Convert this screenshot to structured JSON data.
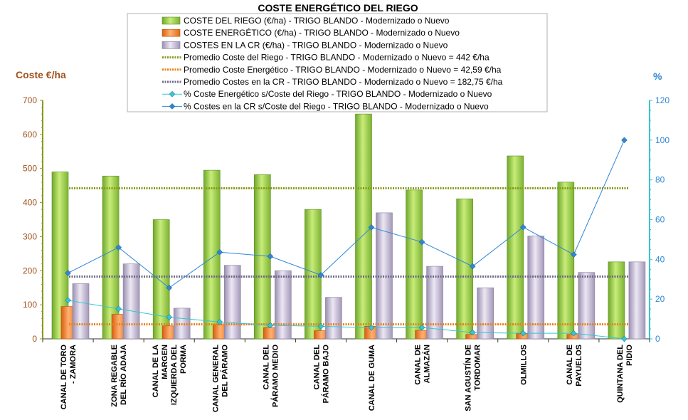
{
  "chart_data": {
    "type": "bar",
    "title": "COSTE ENERGÉTICO DEL RIEGO",
    "ylabel": "Coste €/ha",
    "y2label": "%",
    "ylim": [
      0,
      700
    ],
    "yticks": [
      0,
      100,
      200,
      300,
      400,
      500,
      600,
      700
    ],
    "y2lim": [
      0,
      120
    ],
    "y2ticks": [
      0,
      20,
      40,
      60,
      80,
      100,
      120
    ],
    "grid": false,
    "legend_position": "top",
    "categories": [
      [
        "CANAL DE TORO",
        "- ZAMORA"
      ],
      [
        "ZONA REGABLE",
        "DEL RÍO ADAJA"
      ],
      [
        "CANAL DE LA",
        "MARGEN",
        "IZQUIERDA DEL",
        "PORMA"
      ],
      [
        "CANAL GENERAL",
        "DEL PÁRAMO"
      ],
      [
        "CANAL DEL",
        "PÁRAMO MEDIO"
      ],
      [
        "CANAL DEL",
        "PÁRAMO BAJO"
      ],
      [
        "CANAL DE GUMA"
      ],
      [
        "CANAL DE",
        "ALMAZÁN"
      ],
      [
        "SAN AGUSTÍN DE",
        "TORDOMAR"
      ],
      [
        "OLMILLOS"
      ],
      [
        "CANAL DE",
        "PAYUELOS"
      ],
      [
        "QUINTANA DEL",
        "PIDIO"
      ]
    ],
    "bar_series": [
      {
        "name": "COSTE DEL RIEGO (€/ha) - TRIGO BLANDO - Modernizado o Nuevo",
        "color": "#8dc63f",
        "values": [
          490,
          478,
          350,
          495,
          482,
          380,
          660,
          437,
          411,
          537,
          460,
          226
        ]
      },
      {
        "name": "COSTE ENERGÉTICO (€/ha) - TRIGO BLANDO - Modernizado o Nuevo",
        "color": "#f0782a",
        "values": [
          95,
          72,
          38,
          42,
          33,
          24,
          37,
          25,
          13,
          15,
          13,
          0
        ]
      },
      {
        "name": "COSTES EN LA CR (€/ha) - TRIGO BLANDO - Modernizado o Nuevo",
        "color": "#b9aec8",
        "values": [
          162,
          220,
          90,
          216,
          200,
          122,
          370,
          213,
          150,
          302,
          195,
          226
        ]
      }
    ],
    "avg_series": [
      {
        "name": "Promedio Coste del Riego - TRIGO BLANDO - Modernizado o Nuevo = 442 €/ha",
        "color": "#8a9a1a",
        "value": 442
      },
      {
        "name": "Promedio Coste Energético - TRIGO BLANDO - Modernizado o Nuevo = 42,59 €/ha",
        "color": "#e8801a",
        "value": 42.59
      },
      {
        "name": "Promedio Costes en la CR - TRIGO BLANDO - Modernizado o Nuevo = 182,75 €/ha",
        "color": "#6e6a86",
        "value": 182.75
      }
    ],
    "line_series": [
      {
        "name": "% Coste Energético s/Coste del Riego - TRIGO BLANDO - Modernizado o Nuevo",
        "color": "#33c7cf",
        "values": [
          19.4,
          15.1,
          10.9,
          8.5,
          6.8,
          6.3,
          5.6,
          5.7,
          3.2,
          2.8,
          2.8,
          0
        ]
      },
      {
        "name": "% Costes en la CR s/Coste del Riego - TRIGO BLANDO - Modernizado o Nuevo",
        "color": "#2f86d6",
        "values": [
          33.1,
          46.0,
          25.7,
          43.6,
          41.5,
          32.1,
          56.1,
          48.7,
          36.5,
          56.2,
          42.4,
          100
        ]
      }
    ]
  }
}
